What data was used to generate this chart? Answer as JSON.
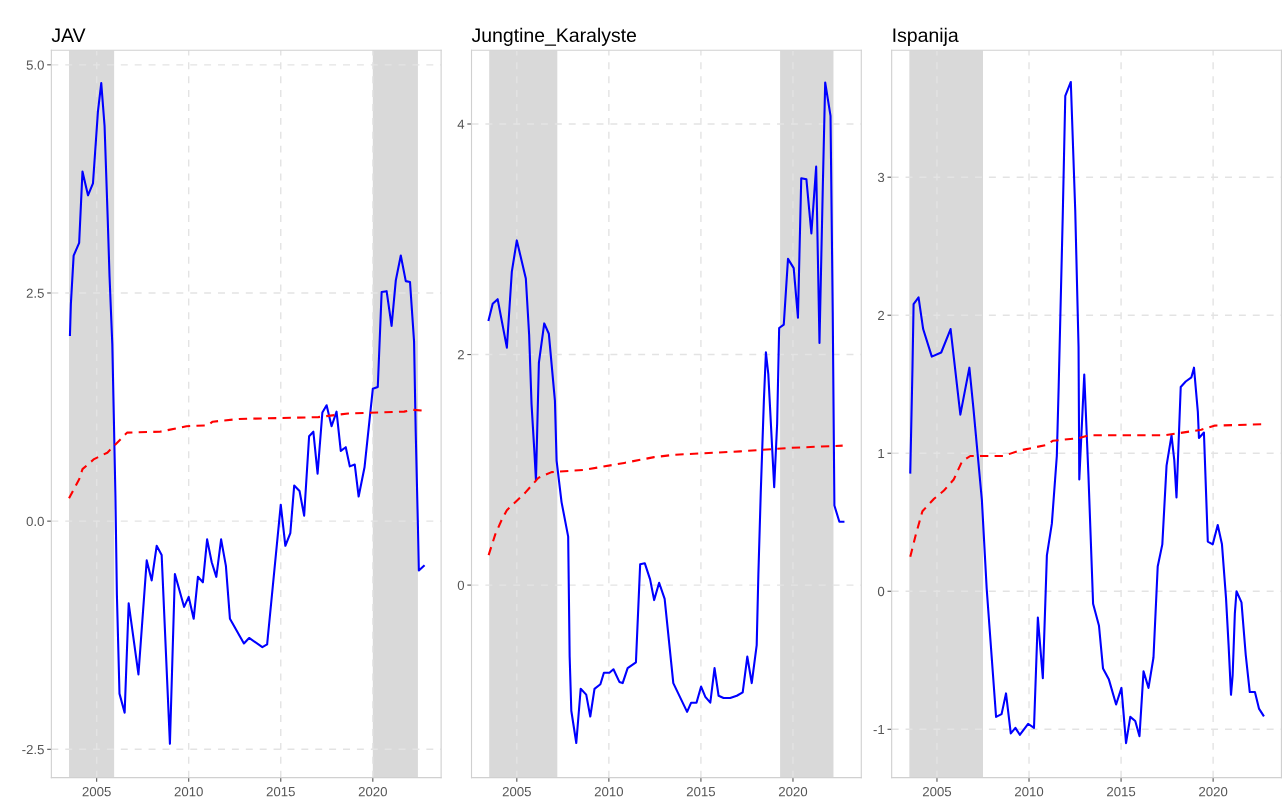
{
  "chart_data": [
    {
      "type": "line",
      "title": "JAV",
      "xlim": [
        2002.54,
        2023.71
      ],
      "xticks": [
        2005,
        2010,
        2015,
        2020
      ],
      "ylim": [
        -2.81,
        5.16
      ],
      "yticks": [
        {
          "value": -2.5,
          "label": "-2.5"
        },
        {
          "value": 0,
          "label": "0.0"
        },
        {
          "value": 2.5,
          "label": "2.5"
        },
        {
          "value": 5,
          "label": "5.0"
        }
      ],
      "grid": true,
      "bands": [
        {
          "axis": "x",
          "from": 2003.5,
          "to": 2005.95,
          "color": "#d9d9d9"
        },
        {
          "axis": "x",
          "from": 2020.0,
          "to": 2022.45,
          "color": "#d9d9d9"
        }
      ],
      "series": [
        {
          "color": "#0000ff",
          "line_style": "solid",
          "x": [
            2003.55,
            2003.6,
            2003.75,
            2004.05,
            2004.23,
            2004.53,
            2004.8,
            2005.07,
            2005.25,
            2005.43,
            2005.6,
            2005.7,
            2005.85,
            2005.93,
            2006.02,
            2006.1,
            2006.24,
            2006.52,
            2006.74,
            2007.27,
            2007.72,
            2007.99,
            2008.26,
            2008.53,
            2008.98,
            2009.25,
            2009.75,
            2010.0,
            2010.27,
            2010.5,
            2010.77,
            2011.0,
            2011.25,
            2011.5,
            2011.76,
            2012.02,
            2012.24,
            2013.0,
            2013.28,
            2014.0,
            2014.26,
            2015.0,
            2015.25,
            2015.52,
            2015.73,
            2016.02,
            2016.27,
            2016.54,
            2016.77,
            2017.0,
            2017.26,
            2017.49,
            2017.76,
            2018.03,
            2018.26,
            2018.53,
            2018.75,
            2019.02,
            2019.23,
            2019.55,
            2020.0,
            2020.27,
            2020.48,
            2020.75,
            2021.02,
            2021.25,
            2021.52,
            2021.79,
            2022.02,
            2022.24,
            2022.33,
            2022.45,
            2022.5,
            2022.77
          ],
          "values": [
            2.04,
            2.38,
            2.91,
            3.05,
            3.83,
            3.57,
            3.7,
            4.49,
            4.8,
            4.33,
            3.32,
            2.68,
            1.94,
            1.17,
            0.27,
            -0.81,
            -1.89,
            -2.1,
            -0.9,
            -1.68,
            -0.43,
            -0.65,
            -0.27,
            -0.37,
            -2.44,
            -0.58,
            -0.94,
            -0.83,
            -1.07,
            -0.61,
            -0.67,
            -0.2,
            -0.45,
            -0.61,
            -0.2,
            -0.49,
            -1.07,
            -1.34,
            -1.28,
            -1.38,
            -1.35,
            0.18,
            -0.27,
            -0.13,
            0.39,
            0.33,
            0.06,
            0.93,
            0.98,
            0.52,
            1.19,
            1.27,
            1.04,
            1.2,
            0.77,
            0.81,
            0.6,
            0.62,
            0.27,
            0.59,
            1.45,
            1.47,
            2.51,
            2.52,
            2.14,
            2.64,
            2.91,
            2.63,
            2.62,
            1.97,
            0.98,
            -0.05,
            -0.54,
            -0.49
          ]
        },
        {
          "color": "#ff0000",
          "line_style": "dashed",
          "x": [
            2003.5,
            2004.05,
            2004.23,
            2004.86,
            2005.58,
            2006.02,
            2006.65,
            2008.44,
            2009.88,
            2011.04,
            2011.3,
            2012.74,
            2015.07,
            2017.04,
            2018.66,
            2021.7,
            2022.15,
            2022.74
          ],
          "values": [
            0.25,
            0.46,
            0.57,
            0.68,
            0.75,
            0.84,
            0.97,
            0.98,
            1.04,
            1.05,
            1.09,
            1.12,
            1.13,
            1.14,
            1.18,
            1.2,
            1.22,
            1.21
          ]
        }
      ]
    },
    {
      "type": "line",
      "title": "Jungtine_Karalyste",
      "xlim": [
        2002.54,
        2023.71
      ],
      "xticks": [
        2005,
        2010,
        2015,
        2020
      ],
      "ylim": [
        -1.67,
        4.64
      ],
      "yticks": [
        0,
        2,
        4
      ],
      "grid": true,
      "bands": [
        {
          "axis": "x",
          "from": 2003.5,
          "to": 2007.2,
          "color": "#d9d9d9"
        },
        {
          "axis": "x",
          "from": 2019.3,
          "to": 2022.2,
          "color": "#d9d9d9"
        }
      ],
      "series": [
        {
          "color": "#0000ff",
          "line_style": "solid",
          "x": [
            2003.47,
            2003.69,
            2003.96,
            2004.46,
            2004.73,
            2005.0,
            2005.49,
            2005.67,
            2005.8,
            2005.95,
            2006.04,
            2006.2,
            2006.49,
            2006.74,
            2007.07,
            2007.16,
            2007.43,
            2007.79,
            2007.87,
            2007.96,
            2008.23,
            2008.47,
            2008.77,
            2008.99,
            2009.22,
            2009.54,
            2009.73,
            2010.03,
            2010.25,
            2010.57,
            2010.75,
            2011.02,
            2011.47,
            2011.7,
            2011.95,
            2012.24,
            2012.46,
            2012.73,
            2013.03,
            2013.5,
            2014.25,
            2014.47,
            2014.76,
            2015.01,
            2015.24,
            2015.51,
            2015.74,
            2015.96,
            2016.23,
            2016.59,
            2016.95,
            2017.27,
            2017.52,
            2017.76,
            2018.03,
            2018.12,
            2018.25,
            2018.42,
            2018.53,
            2018.66,
            2018.98,
            2019.14,
            2019.25,
            2019.5,
            2019.73,
            2020.04,
            2020.27,
            2020.45,
            2020.73,
            2021.0,
            2021.26,
            2021.44,
            2021.62,
            2021.75,
            2022.04,
            2022.16,
            2022.25,
            2022.52,
            2022.74
          ],
          "values": [
            2.3,
            2.44,
            2.48,
            2.06,
            2.72,
            2.99,
            2.66,
            2.17,
            1.57,
            1.17,
            0.91,
            1.93,
            2.27,
            2.18,
            1.6,
            1.08,
            0.72,
            0.42,
            -0.62,
            -1.09,
            -1.37,
            -0.9,
            -0.95,
            -1.14,
            -0.9,
            -0.86,
            -0.76,
            -0.76,
            -0.73,
            -0.84,
            -0.85,
            -0.72,
            -0.67,
            0.18,
            0.19,
            0.05,
            -0.13,
            0.02,
            -0.12,
            -0.85,
            -1.1,
            -1.02,
            -1.02,
            -0.88,
            -0.97,
            -1.02,
            -0.72,
            -0.96,
            -0.98,
            -0.98,
            -0.96,
            -0.93,
            -0.62,
            -0.85,
            -0.52,
            0.09,
            0.8,
            1.6,
            2.02,
            1.83,
            0.85,
            1.4,
            2.23,
            2.26,
            2.83,
            2.75,
            2.32,
            3.53,
            3.52,
            3.05,
            3.63,
            2.1,
            3.45,
            4.36,
            4.07,
            2.36,
            0.69,
            0.55,
            0.55
          ]
        },
        {
          "color": "#ff0000",
          "line_style": "dashed",
          "x": [
            2003.47,
            2003.83,
            2004.19,
            2004.46,
            2005.45,
            2006.17,
            2006.89,
            2008.68,
            2010.84,
            2012.46,
            2013.53,
            2017.13,
            2019.82,
            2022.7
          ],
          "values": [
            0.26,
            0.44,
            0.57,
            0.65,
            0.8,
            0.93,
            0.98,
            1.0,
            1.06,
            1.11,
            1.13,
            1.16,
            1.19,
            1.21
          ]
        }
      ]
    },
    {
      "type": "line",
      "title": "Ispanija",
      "xlim": [
        2002.54,
        2023.71
      ],
      "xticks": [
        2005,
        2010,
        2015,
        2020
      ],
      "ylim": [
        -1.35,
        3.92
      ],
      "yticks": [
        -1,
        0,
        1,
        2,
        3
      ],
      "grid": true,
      "bands": [
        {
          "axis": "x",
          "from": 2003.5,
          "to": 2007.5,
          "color": "#d9d9d9"
        }
      ],
      "series": [
        {
          "color": "#0000ff",
          "line_style": "solid",
          "x": [
            2003.55,
            2003.67,
            2003.73,
            2004.0,
            2004.25,
            2004.72,
            2005.23,
            2005.74,
            2006.27,
            2006.76,
            2006.99,
            2007.44,
            2007.7,
            2008.21,
            2008.51,
            2008.75,
            2009.01,
            2009.26,
            2009.5,
            2009.95,
            2010.27,
            2010.48,
            2010.75,
            2010.97,
            2011.24,
            2011.51,
            2011.61,
            2011.83,
            2011.97,
            2012.27,
            2012.51,
            2012.69,
            2012.73,
            2013.0,
            2013.23,
            2013.48,
            2013.8,
            2014.02,
            2014.34,
            2014.73,
            2015.02,
            2015.27,
            2015.5,
            2015.77,
            2016.0,
            2016.22,
            2016.49,
            2016.76,
            2016.99,
            2017.24,
            2017.47,
            2017.74,
            2017.89,
            2018.01,
            2018.24,
            2018.51,
            2018.82,
            2018.96,
            2019.17,
            2019.23,
            2019.5,
            2019.71,
            2019.98,
            2020.25,
            2020.48,
            2020.7,
            2020.84,
            2020.97,
            2021.06,
            2021.18,
            2021.27,
            2021.54,
            2021.77,
            2021.99,
            2022.27,
            2022.49,
            2022.73
          ],
          "values": [
            0.86,
            1.62,
            2.08,
            2.13,
            1.9,
            1.7,
            1.73,
            1.9,
            1.28,
            1.62,
            1.31,
            0.66,
            0.02,
            -0.91,
            -0.89,
            -0.74,
            -1.03,
            -0.99,
            -1.04,
            -0.96,
            -0.99,
            -0.19,
            -0.63,
            0.26,
            0.49,
            0.98,
            1.48,
            2.71,
            3.59,
            3.69,
            2.76,
            1.77,
            0.81,
            1.57,
            0.83,
            -0.09,
            -0.25,
            -0.56,
            -0.64,
            -0.82,
            -0.7,
            -1.1,
            -0.91,
            -0.94,
            -1.05,
            -0.58,
            -0.7,
            -0.48,
            0.18,
            0.34,
            0.91,
            1.13,
            0.95,
            0.68,
            1.48,
            1.52,
            1.55,
            1.62,
            1.3,
            1.11,
            1.15,
            0.36,
            0.34,
            0.48,
            0.34,
            -0.05,
            -0.39,
            -0.75,
            -0.61,
            -0.16,
            0.0,
            -0.08,
            -0.46,
            -0.73,
            -0.73,
            -0.85,
            -0.9
          ]
        },
        {
          "color": "#ff0000",
          "line_style": "dashed",
          "x": [
            2003.55,
            2003.85,
            2004.21,
            2004.84,
            2005.38,
            2005.91,
            2006.36,
            2006.81,
            2008.6,
            2009.5,
            2010.93,
            2011.29,
            2012.73,
            2013.26,
            2017.38,
            2019.35,
            2020.07,
            2022.73
          ],
          "values": [
            0.25,
            0.41,
            0.58,
            0.67,
            0.73,
            0.81,
            0.94,
            0.98,
            0.98,
            1.02,
            1.06,
            1.09,
            1.11,
            1.13,
            1.13,
            1.17,
            1.2,
            1.21
          ]
        }
      ]
    }
  ]
}
